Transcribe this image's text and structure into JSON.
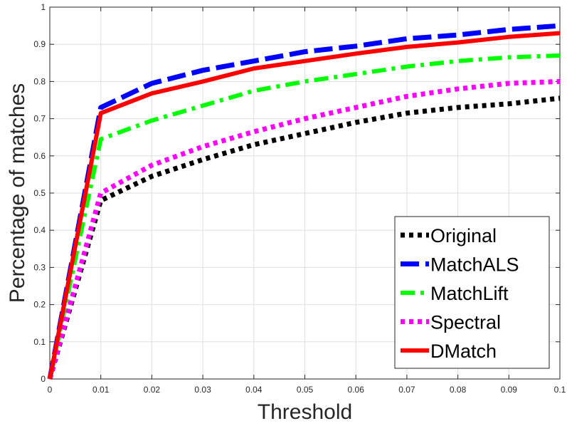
{
  "chart_data": {
    "type": "line",
    "title": "",
    "xlabel": "Threshold",
    "ylabel": "Percentage of matches",
    "xlim": [
      0,
      0.1
    ],
    "ylim": [
      0,
      1
    ],
    "x_ticks": [
      0,
      0.01,
      0.02,
      0.03,
      0.04,
      0.05,
      0.06,
      0.07,
      0.08,
      0.09,
      0.1
    ],
    "x_tick_labels": [
      "0",
      "0.01",
      "0.02",
      "0.03",
      "0.04",
      "0.05",
      "0.06",
      "0.07",
      "0.08",
      "0.09",
      "0.1"
    ],
    "y_ticks": [
      0,
      0.1,
      0.2,
      0.3,
      0.4,
      0.5,
      0.6,
      0.7,
      0.8,
      0.9,
      1
    ],
    "y_tick_labels": [
      "0",
      "0.1",
      "0.2",
      "0.3",
      "0.4",
      "0.5",
      "0.6",
      "0.7",
      "0.8",
      "0.9",
      "1"
    ],
    "grid": true,
    "legend_position": "bottom-right",
    "x": [
      0,
      0.01,
      0.02,
      0.03,
      0.04,
      0.05,
      0.06,
      0.07,
      0.08,
      0.09,
      0.1
    ],
    "series": [
      {
        "name": "Original",
        "color": "#000000",
        "style": "dotted",
        "values": [
          0,
          0.48,
          0.545,
          0.59,
          0.63,
          0.66,
          0.69,
          0.715,
          0.73,
          0.74,
          0.755
        ]
      },
      {
        "name": "MatchALS",
        "color": "#0000ff",
        "style": "dashed",
        "values": [
          0,
          0.73,
          0.795,
          0.83,
          0.855,
          0.88,
          0.895,
          0.915,
          0.925,
          0.94,
          0.95
        ]
      },
      {
        "name": "MatchLift",
        "color": "#00ff00",
        "style": "dashdot",
        "values": [
          0,
          0.645,
          0.695,
          0.735,
          0.775,
          0.8,
          0.82,
          0.84,
          0.855,
          0.865,
          0.87
        ]
      },
      {
        "name": "Spectral",
        "color": "#ff00ff",
        "style": "dotted",
        "values": [
          0,
          0.5,
          0.575,
          0.625,
          0.665,
          0.7,
          0.73,
          0.76,
          0.78,
          0.795,
          0.8
        ]
      },
      {
        "name": "DMatch",
        "color": "#ff0000",
        "style": "solid",
        "values": [
          0,
          0.715,
          0.768,
          0.8,
          0.835,
          0.855,
          0.875,
          0.893,
          0.905,
          0.92,
          0.93
        ]
      }
    ]
  }
}
